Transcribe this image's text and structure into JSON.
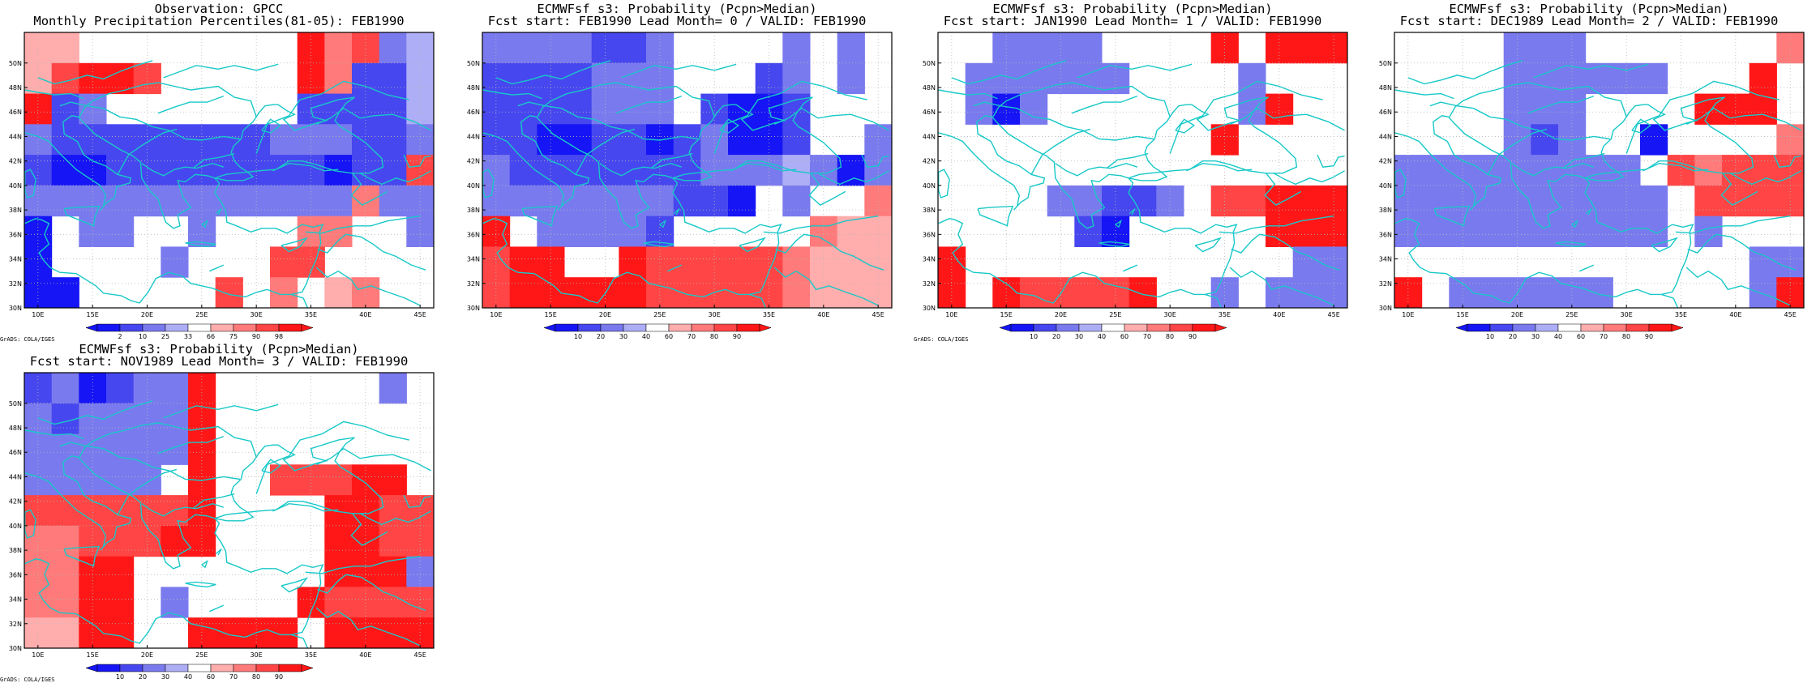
{
  "colors": {
    "blue": {
      "10": "#1515f5",
      "20": "#4747ef",
      "30": "#7a7aef",
      "40": "#aeaef7"
    },
    "red": {
      "60": "#ffadad",
      "70": "#ff7a7a",
      "80": "#ff4545",
      "90": "#ff1717"
    },
    "coast": "#18c8c8",
    "grid": "#b8b8b8"
  },
  "grid_lons": [
    10,
    12.5,
    15,
    17.5,
    20,
    22.5,
    25,
    27.5,
    30,
    32.5,
    35,
    37.5,
    40,
    42.5,
    45
  ],
  "grid_lats": [
    51.25,
    48.75,
    46.25,
    43.75,
    41.25,
    38.75,
    36.25,
    33.75,
    31.25
  ],
  "cell_legend": {
    "b": "blue",
    "r": "red",
    "digit": "probability/percentile class, darker = higher"
  },
  "lon_ticks": [
    "10E",
    "15E",
    "20E",
    "25E",
    "30E",
    "35E",
    "40E",
    "45E"
  ],
  "lat_ticks": [
    "50N",
    "48N",
    "46N",
    "44N",
    "42N",
    "40N",
    "38N",
    "36N",
    "34N",
    "32N",
    "30N"
  ],
  "footer": "GrADS: COLA/IGES",
  "panels": [
    {
      "title1": "Observation: GPCC",
      "title2": "Monthly Precipitation Percentiles(81-05): FEB1990",
      "colorbar_labels": [
        "2",
        "10",
        "25",
        "33",
        "66",
        "75",
        "90",
        "98"
      ],
      "cells": [
        "r4 r4 .. .. .. .. .. .. .. .. r1 r3 r2 b3 b4",
        "r4 r2 r1 r1 r2 .. .. .. .. .. r1 r3 b2 b2 b4",
        "r1 b2 b3 .. .. .. .. .. .. .. b2 b2 b2 b2 b4",
        "b3 b2 b2 b2 b2 b2 b2 b2 b2 b3 b3 b3 b2 b2 b3",
        "b2 b1 b1 b2 b2 b2 b2 b2 b2 b2 b2 b1 b2 b2 r2",
        "b3 b3 b3 b3 b3 b3 b3 b3 b3 b3 b3 b3 r3 b3 b3",
        "b1 .. b3 b3 .. .. b3 .. .. .. r3 r3 .. .. b3",
        "b1 .. .. .. .. b3 .. .. .. r2 r2 .. .. .. ..",
        "b1 b1 .. .. .. .. .. r2 .. r3 .. r4 r3 .. .."
      ]
    },
    {
      "title1": "ECMWFsf s3: Probability (Pcpn>Median)",
      "title2": "Fcst start: FEB1990  Lead Month= 0 / VALID: FEB1990",
      "colorbar_labels": [
        "10",
        "20",
        "30",
        "40",
        "60",
        "70",
        "80",
        "90"
      ],
      "cells": [
        "b3 b3 b3 b3 b2 b2 b3 .. .. .. .. b3 .. b3 ..",
        "b2 b2 b2 b2 b3 b3 b3 .. .. .. b2 b3 .. b3 ..",
        "b2 b2 b2 b2 b3 b3 b3 .. b2 b1 b1 b2 .. .. ..",
        "b2 b2 b1 b1 b2 b2 b1 b2 b3 b1 b1 b2 .. .. b3",
        "b3 b2 b2 b2 b2 b2 b2 b2 b3 b3 b3 b4 b3 b1 b3",
        "b3 b3 b3 b3 b3 b3 b3 b2 b2 b1 .. b3 .. .. r3",
        "r1 .. b3 b3 b3 b3 b2 .. .. .. .. .. r3 r4 r4",
        "r2 r1 r1 .. .. r1 r2 r2 r2 r2 r2 r3 r4 r4 r4",
        "r2 r1 r1 r1 r1 r1 r2 r2 r2 r2 r2 r3 r4 r4 r4"
      ]
    },
    {
      "title1": "ECMWFsf s3: Probability (Pcpn>Median)",
      "title2": "Fcst start: JAN1990  Lead Month= 1 / VALID: FEB1990",
      "colorbar_labels": [
        "10",
        "20",
        "30",
        "40",
        "60",
        "70",
        "80",
        "90"
      ],
      "cells": [
        ".. .. b3 b3 b3 b3 .. .. .. .. r1 .. r1 r1 r1",
        ".. b3 b3 b3 b3 b3 b3 .. .. .. .. b3 .. .. ..",
        ".. b3 b1 b3 .. .. .. .. .. .. .. b3 r1 .. ..",
        ".. .. .. .. .. .. .. .. .. .. r1 .. .. .. ..",
        ".. .. .. .. .. .. .. .. .. .. .. .. .. .. ..",
        ".. .. .. .. b3 b3 b2 b2 b3 .. r2 r2 r1 r1 r1",
        ".. .. .. .. .. b2 b1 .. .. .. .. .. r1 r1 r1",
        "r1 .. .. .. .. .. .. .. .. .. .. .. .. b3 b3",
        "r1 .. r1 r2 r2 r2 r2 r1 .. .. b3 .. b3 b3 b3"
      ]
    },
    {
      "title1": "ECMWFsf s3: Probability (Pcpn>Median)",
      "title2": "Fcst start: DEC1989  Lead Month= 2 / VALID: FEB1990",
      "colorbar_labels": [
        "10",
        "20",
        "30",
        "40",
        "60",
        "70",
        "80",
        "90"
      ],
      "cells": [
        ".. .. .. .. b3 b3 b3 .. .. .. .. .. .. .. r3",
        ".. .. .. .. b3 b3 b3 b3 b3 b3 .. .. .. r1 ..",
        ".. .. .. .. b3 b3 b3 .. .. .. .. r1 r1 r1 ..",
        ".. .. .. .. b3 b2 b3 .. .. b1 .. .. .. .. r3",
        "b3 b3 b3 b3 b3 b3 b3 b3 b3 .. r2 r3 r2 r2 r2",
        "b3 b3 b3 b3 b3 b3 b3 b3 b3 b3 .. r2 r2 r2 r2",
        "b3 b3 b3 b3 b3 b3 b3 b3 b3 b3 .. b3 .. .. ..",
        ".. .. .. .. .. .. .. .. .. .. .. .. .. b3 b3",
        "r1 .. b3 b3 b3 b3 b3 b3 .. .. .. .. .. b3 r1"
      ]
    },
    {
      "title1": "ECMWFsf s3: Probability (Pcpn>Median)",
      "title2": "Fcst start: NOV1989  Lead Month= 3 / VALID: FEB1990",
      "colorbar_labels": [
        "10",
        "20",
        "30",
        "40",
        "60",
        "70",
        "80",
        "90"
      ],
      "cells": [
        "b2 b3 b1 b2 b3 b3 r1 .. .. .. .. .. .. b3 ..",
        "b3 b2 b3 b3 b3 b3 r1 .. .. .. .. .. .. .. ..",
        "b3 b3 b3 b3 b3 b3 r1 .. .. .. .. .. .. .. ..",
        "b3 b3 b3 b3 b3 .. r1 .. .. r2 r2 r2 r1 r1 ..",
        "r2 r2 r2 r2 r2 r2 r1 .. .. .. .. r1 r1 r2 r2",
        "r3 r3 r2 r2 r2 r1 r1 .. .. .. .. r1 r1 r2 r2",
        "r3 r3 r1 r1 .. .. .. .. .. .. .. r1 r1 r1 b3",
        "r3 r3 r1 r1 .. b3 .. .. .. .. r1 r2 r2 r2 r2",
        "r4 r4 r1 r1 .. .. r1 r1 r1 r1 .. r1 r1 r1 r1"
      ]
    }
  ]
}
